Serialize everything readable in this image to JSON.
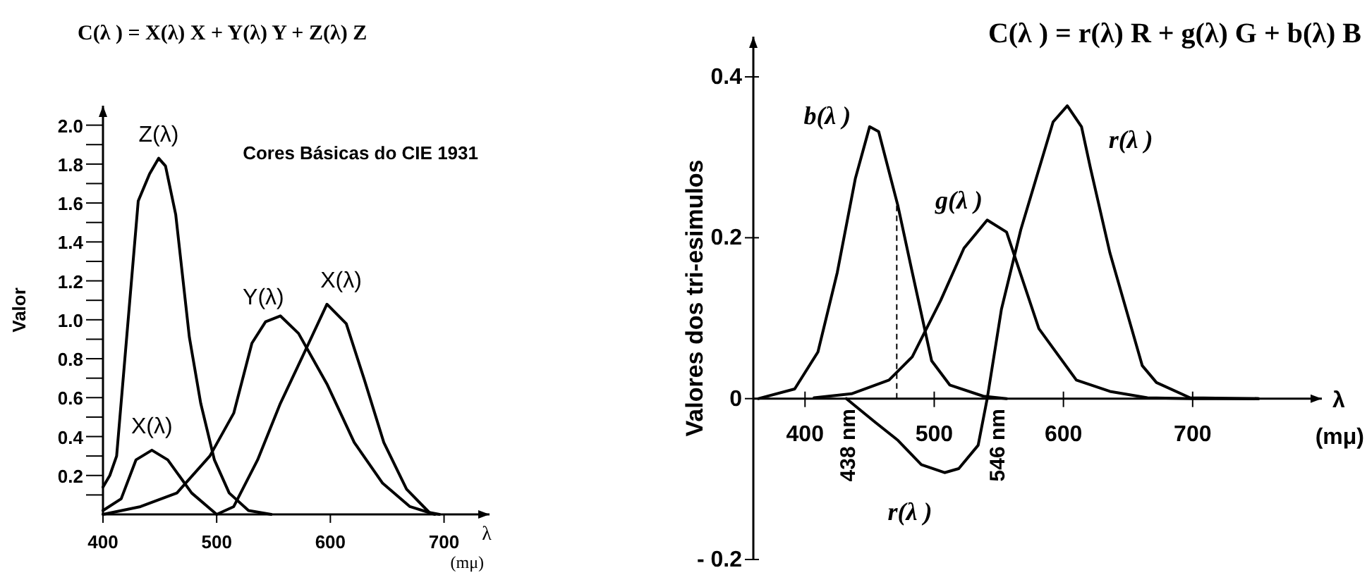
{
  "chart_data": [
    {
      "type": "line",
      "title": "C(λ ) = X(λ) X + Y(λ) Y + Z(λ) Z",
      "xlabel": "λ",
      "ylabel": "Valor",
      "xlim": [
        400,
        740
      ],
      "ylim": [
        0,
        2.1
      ],
      "xticks": [
        400,
        500,
        600,
        700
      ],
      "yticks": [
        {
          "value": 0.1,
          "label": null
        },
        0.2,
        {
          "value": 0.3,
          "label": null
        },
        0.4,
        {
          "value": 0.5,
          "label": null
        },
        0.6,
        {
          "value": 0.7,
          "label": null
        },
        0.8,
        {
          "value": 0.9,
          "label": null
        },
        {
          "value": 1.0,
          "label": "1.0"
        },
        {
          "value": 1.1,
          "label": null
        },
        1.2,
        {
          "value": 1.3,
          "label": null
        },
        1.4,
        {
          "value": 1.5,
          "label": null
        },
        1.6,
        {
          "value": 1.7,
          "label": null
        },
        1.8,
        {
          "value": 1.9,
          "label": null
        },
        {
          "value": 2.0,
          "label": "2.0"
        }
      ],
      "grid": false,
      "series": [
        {
          "name": "Z(λ)",
          "color": "#000000",
          "x": [
            400,
            406,
            412,
            431,
            441,
            449,
            455,
            464,
            476,
            486,
            498,
            511,
            528,
            548
          ],
          "values": [
            0.14,
            0.2,
            0.3,
            1.61,
            1.75,
            1.83,
            1.79,
            1.54,
            0.91,
            0.57,
            0.28,
            0.11,
            0.02,
            0
          ]
        },
        {
          "name": "Y(λ)",
          "color": "#000000",
          "x": [
            400,
            433,
            465,
            494,
            515,
            531,
            543,
            556,
            572,
            597,
            621,
            646,
            670,
            692
          ],
          "values": [
            0,
            0.04,
            0.11,
            0.3,
            0.52,
            0.88,
            0.99,
            1.02,
            0.93,
            0.67,
            0.37,
            0.16,
            0.04,
            0
          ]
        },
        {
          "name": "X(λ)",
          "color": "#000000",
          "x": [
            400,
            416,
            429,
            443,
            457,
            478,
            500,
            515,
            536,
            556,
            577,
            597,
            614,
            630,
            647,
            667,
            687,
            696
          ],
          "values": [
            0.02,
            0.08,
            0.28,
            0.33,
            0.28,
            0.11,
            0,
            0.04,
            0.28,
            0.57,
            0.83,
            1.08,
            0.98,
            0.69,
            0.37,
            0.13,
            0.01,
            0
          ]
        }
      ],
      "annotations": [
        "Cores Básicas do CIE 1931",
        {
          "text": "X(λ)",
          "x": 443,
          "y": 0.33
        },
        "(mμ)"
      ]
    },
    {
      "type": "line",
      "title": "C(λ ) = r(λ) R + g(λ) G + b(λ) B",
      "xlabel": "λ",
      "ylabel": "Valores dos tri-esimulos",
      "xlim": [
        360,
        800
      ],
      "ylim": [
        -0.2,
        0.45
      ],
      "xticks": [
        400,
        500,
        600,
        700
      ],
      "yticks": [
        {
          "value": -0.2,
          "label": "- 0.2"
        },
        0,
        0.2,
        0.4
      ],
      "grid": false,
      "series": [
        {
          "name": "b(λ )",
          "color": "#000000",
          "x": [
            364,
            392,
            410,
            425,
            439,
            450,
            457,
            472,
            483,
            498,
            512,
            538,
            556
          ],
          "values": [
            0,
            0.012,
            0.058,
            0.157,
            0.274,
            0.338,
            0.332,
            0.239,
            0.157,
            0.047,
            0.017,
            0.003,
            0
          ]
        },
        {
          "name": "g(λ )",
          "color": "#000000",
          "x": [
            407,
            436,
            465,
            483,
            505,
            523,
            541,
            556,
            581,
            610,
            636,
            665,
            700,
            751
          ],
          "values": [
            0.001,
            0.006,
            0.023,
            0.052,
            0.122,
            0.187,
            0.222,
            0.207,
            0.087,
            0.023,
            0.009,
            0.001,
            0,
            0
          ]
        },
        {
          "name": "r(λ )",
          "color": "#000000",
          "x": [
            432,
            454,
            472,
            490,
            508,
            519,
            534,
            541,
            552,
            567,
            592,
            603,
            614,
            621,
            636,
            661,
            672,
            698,
            751
          ],
          "values": [
            0,
            -0.029,
            -0.052,
            -0.082,
            -0.092,
            -0.087,
            -0.058,
            0,
            0.111,
            0.21,
            0.344,
            0.364,
            0.338,
            0.286,
            0.181,
            0.041,
            0.02,
            0.001,
            0
          ]
        }
      ],
      "ref_lines": [
        {
          "axis": "x",
          "value": 471,
          "line_style": "dashed"
        }
      ],
      "annotations": [
        "438 nm",
        "546 nm",
        "r(λ )",
        "(mμ)"
      ]
    }
  ]
}
